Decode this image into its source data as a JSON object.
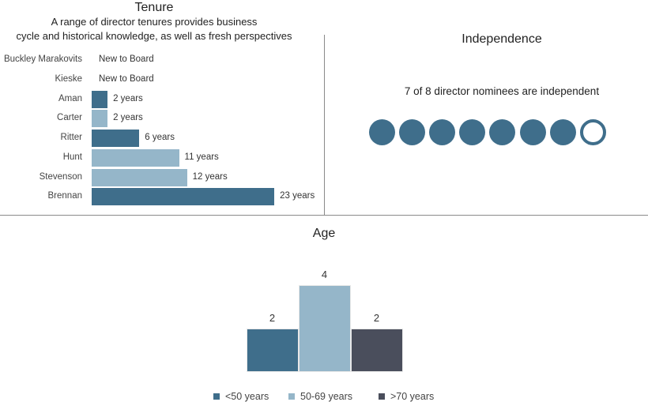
{
  "chart_data": [
    {
      "type": "bar",
      "orientation": "horizontal",
      "title": "Tenure",
      "subtitle_lines": [
        "A range of director tenures provides business",
        "cycle and historical knowledge, as well as fresh perspectives"
      ],
      "categories": [
        "Buckley Marakovits",
        "Kieske",
        "Aman",
        "Carter",
        "Ritter",
        "Hunt",
        "Stevenson",
        "Brennan"
      ],
      "values": [
        0,
        0,
        2,
        2,
        6,
        11,
        12,
        23
      ],
      "data_labels": [
        "New to Board",
        "New to Board",
        "2 years",
        "2 years",
        "6 years",
        "11 years",
        "12 years",
        "23 years"
      ],
      "bar_colors": [
        "#3f6e8b",
        "#3f6e8b",
        "#3f6e8b",
        "#95b6c9",
        "#3f6e8b",
        "#95b6c9",
        "#95b6c9",
        "#3f6e8b"
      ]
    },
    {
      "type": "pictogram",
      "title": "Independence",
      "text": "7 of 8 director nominees are independent",
      "independent": 7,
      "total": 8
    },
    {
      "type": "bar",
      "title": "Age",
      "categories": [
        "<50 years",
        "50-69 years",
        ">70 years"
      ],
      "values": [
        2,
        4,
        2
      ],
      "data_labels": [
        "2",
        "4",
        "2"
      ],
      "colors": [
        "#3f6e8b",
        "#95b6c9",
        "#4a4e5c"
      ],
      "legend_position": "bottom"
    }
  ]
}
